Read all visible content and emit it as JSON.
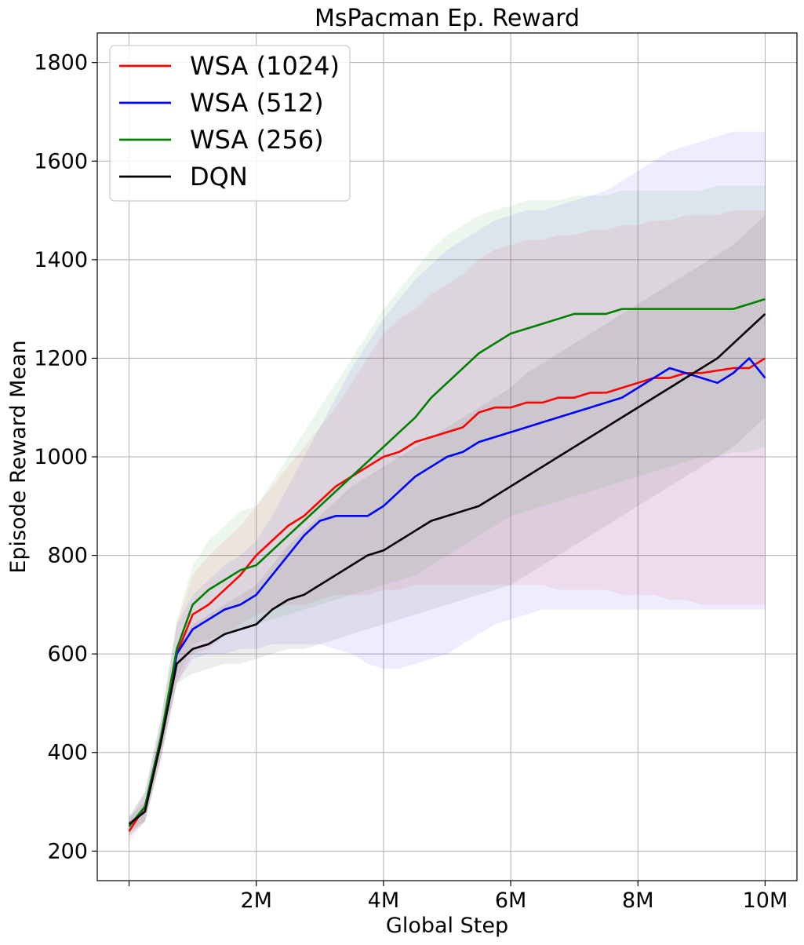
{
  "chart_data": {
    "type": "line",
    "title": "MsPacman Ep. Reward",
    "xlabel": "Global Step",
    "ylabel": "Episode Reward Mean",
    "xlim": [
      -0.5,
      10.5
    ],
    "ylim": [
      140,
      1860
    ],
    "x_unit": "M steps",
    "xticks": [
      {
        "value": 0,
        "label": ""
      },
      {
        "value": 2,
        "label": "2M"
      },
      {
        "value": 4,
        "label": "4M"
      },
      {
        "value": 6,
        "label": "6M"
      },
      {
        "value": 8,
        "label": "8M"
      },
      {
        "value": 10,
        "label": "10M"
      }
    ],
    "yticks": [
      {
        "value": 200,
        "label": "200"
      },
      {
        "value": 400,
        "label": "400"
      },
      {
        "value": 600,
        "label": "600"
      },
      {
        "value": 800,
        "label": "800"
      },
      {
        "value": 1000,
        "label": "1000"
      },
      {
        "value": 1200,
        "label": "1200"
      },
      {
        "value": 1400,
        "label": "1400"
      },
      {
        "value": 1600,
        "label": "1600"
      },
      {
        "value": 1800,
        "label": "1800"
      }
    ],
    "grid": true,
    "legend_position": "top-left",
    "x": [
      0,
      0.25,
      0.5,
      0.75,
      1,
      1.25,
      1.5,
      1.75,
      2,
      2.25,
      2.5,
      2.75,
      3,
      3.25,
      3.5,
      3.75,
      4,
      4.25,
      4.5,
      4.75,
      5,
      5.25,
      5.5,
      5.75,
      6,
      6.25,
      6.5,
      6.75,
      7,
      7.25,
      7.5,
      7.75,
      8,
      8.25,
      8.5,
      8.75,
      9,
      9.25,
      9.5,
      9.75,
      10
    ],
    "series": [
      {
        "name": "WSA (1024)",
        "color": "#ff0000",
        "values": [
          240,
          290,
          420,
          600,
          680,
          700,
          730,
          760,
          800,
          830,
          860,
          880,
          910,
          940,
          960,
          980,
          1000,
          1010,
          1030,
          1040,
          1050,
          1060,
          1090,
          1100,
          1100,
          1110,
          1110,
          1120,
          1120,
          1130,
          1130,
          1140,
          1150,
          1160,
          1160,
          1170,
          1170,
          1175,
          1180,
          1180,
          1200
        ],
        "band_low": [
          220,
          260,
          380,
          540,
          600,
          610,
          640,
          660,
          680,
          690,
          700,
          700,
          710,
          720,
          720,
          720,
          730,
          730,
          740,
          740,
          740,
          740,
          740,
          740,
          740,
          740,
          740,
          730,
          730,
          730,
          730,
          720,
          720,
          720,
          710,
          710,
          700,
          700,
          700,
          700,
          700
        ],
        "band_high": [
          260,
          320,
          460,
          660,
          760,
          800,
          830,
          860,
          900,
          940,
          980,
          1020,
          1060,
          1100,
          1150,
          1200,
          1250,
          1280,
          1300,
          1330,
          1350,
          1370,
          1400,
          1420,
          1430,
          1440,
          1440,
          1450,
          1450,
          1460,
          1460,
          1470,
          1470,
          1480,
          1480,
          1490,
          1490,
          1490,
          1500,
          1500,
          1500
        ]
      },
      {
        "name": "WSA (512)",
        "color": "#0000ff",
        "values": [
          250,
          290,
          430,
          600,
          650,
          670,
          690,
          700,
          720,
          760,
          800,
          840,
          870,
          880,
          880,
          880,
          900,
          930,
          960,
          980,
          1000,
          1010,
          1030,
          1040,
          1050,
          1060,
          1070,
          1080,
          1090,
          1100,
          1110,
          1120,
          1140,
          1160,
          1180,
          1170,
          1160,
          1150,
          1170,
          1200,
          1160
        ],
        "band_low": [
          230,
          260,
          390,
          540,
          590,
          600,
          600,
          610,
          610,
          620,
          620,
          620,
          620,
          610,
          600,
          580,
          570,
          570,
          580,
          590,
          600,
          620,
          640,
          660,
          670,
          680,
          690,
          690,
          690,
          690,
          690,
          690,
          690,
          690,
          690,
          690,
          690,
          690,
          690,
          690,
          690
        ],
        "band_high": [
          270,
          320,
          470,
          660,
          720,
          750,
          780,
          800,
          830,
          880,
          940,
          1000,
          1060,
          1120,
          1180,
          1230,
          1280,
          1320,
          1360,
          1390,
          1420,
          1440,
          1460,
          1480,
          1490,
          1500,
          1500,
          1510,
          1520,
          1530,
          1540,
          1560,
          1580,
          1600,
          1620,
          1630,
          1640,
          1650,
          1660,
          1660,
          1660
        ]
      },
      {
        "name": "WSA (256)",
        "color": "#008000",
        "values": [
          250,
          290,
          430,
          610,
          700,
          730,
          750,
          770,
          780,
          810,
          840,
          870,
          900,
          930,
          960,
          990,
          1020,
          1050,
          1080,
          1120,
          1150,
          1180,
          1210,
          1230,
          1250,
          1260,
          1270,
          1280,
          1290,
          1290,
          1290,
          1300,
          1300,
          1300,
          1300,
          1300,
          1300,
          1300,
          1300,
          1310,
          1320
        ],
        "band_low": [
          230,
          260,
          390,
          550,
          620,
          630,
          640,
          650,
          660,
          670,
          680,
          690,
          700,
          710,
          720,
          730,
          740,
          750,
          760,
          780,
          800,
          820,
          840,
          860,
          880,
          890,
          900,
          910,
          920,
          930,
          940,
          950,
          960,
          970,
          980,
          990,
          1000,
          1000,
          1010,
          1010,
          1020
        ],
        "band_high": [
          270,
          320,
          470,
          670,
          780,
          830,
          860,
          890,
          900,
          950,
          1000,
          1050,
          1100,
          1150,
          1200,
          1250,
          1300,
          1340,
          1380,
          1420,
          1450,
          1470,
          1490,
          1500,
          1510,
          1520,
          1520,
          1520,
          1530,
          1530,
          1530,
          1540,
          1540,
          1540,
          1540,
          1540,
          1540,
          1550,
          1550,
          1550,
          1550
        ]
      },
      {
        "name": "DQN",
        "color": "#000000",
        "values": [
          255,
          280,
          420,
          580,
          610,
          620,
          640,
          650,
          660,
          690,
          710,
          720,
          740,
          760,
          780,
          800,
          810,
          830,
          850,
          870,
          880,
          890,
          900,
          920,
          940,
          960,
          980,
          1000,
          1020,
          1040,
          1060,
          1080,
          1100,
          1120,
          1140,
          1160,
          1180,
          1200,
          1230,
          1260,
          1290
        ],
        "band_low": [
          240,
          260,
          390,
          540,
          560,
          570,
          580,
          580,
          590,
          600,
          610,
          610,
          620,
          630,
          640,
          650,
          660,
          670,
          680,
          690,
          700,
          710,
          720,
          730,
          740,
          760,
          780,
          800,
          820,
          840,
          860,
          880,
          900,
          920,
          940,
          960,
          980,
          1000,
          1020,
          1050,
          1080
        ],
        "band_high": [
          270,
          300,
          450,
          620,
          660,
          680,
          700,
          720,
          740,
          780,
          820,
          850,
          880,
          910,
          940,
          960,
          980,
          1000,
          1020,
          1040,
          1060,
          1080,
          1100,
          1120,
          1140,
          1170,
          1190,
          1210,
          1230,
          1250,
          1270,
          1290,
          1310,
          1330,
          1350,
          1370,
          1390,
          1410,
          1430,
          1460,
          1490
        ]
      }
    ]
  }
}
